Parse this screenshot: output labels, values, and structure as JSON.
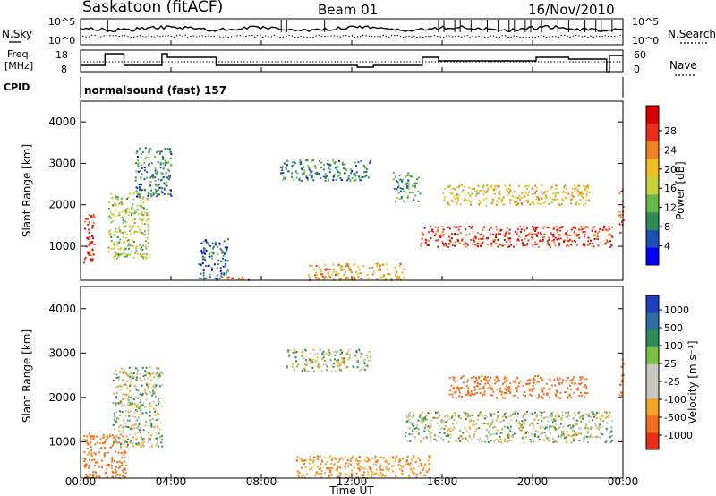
{
  "header": {
    "station": "Saskatoon (fitACF)",
    "beam": "Beam 01",
    "date": "16/Nov/2010",
    "program": "normalsound (fast) 157"
  },
  "side_labels": {
    "nsky": "N.Sky",
    "freq_line1": "Freq.",
    "freq_line2": "[MHz]",
    "cpid": "CPID",
    "nsearch": "N.Search",
    "nave": "Nave"
  },
  "axes": {
    "x_label": "Time UT",
    "x_ticks": [
      "00:00",
      "04:00",
      "08:00",
      "12:00",
      "16:00",
      "20:00",
      "00:00"
    ],
    "y_label": "Slant Range [km]",
    "y_ticks": [
      "1000",
      "2000",
      "3000",
      "4000"
    ],
    "noise_ticks_left": [
      "10^5",
      "10^0"
    ],
    "noise_ticks_right": [
      "10^5",
      "10^0"
    ],
    "freq_ticks": [
      "18",
      "8"
    ],
    "nave_ticks": [
      "60",
      "0"
    ]
  },
  "colorbars": {
    "power": {
      "label": "Power [dB]",
      "ticks": [
        "4",
        "8",
        "12",
        "16",
        "20",
        "24",
        "28"
      ],
      "colors": [
        "#0000ff",
        "#1f4fb0",
        "#2e8b57",
        "#66b845",
        "#c8d23a",
        "#f0c020",
        "#f08020",
        "#e83018",
        "#d80000"
      ]
    },
    "velocity": {
      "label": "Velocity [m s⁻¹]",
      "ticks": [
        "1000",
        "500",
        "100",
        "25",
        "-25",
        "-100",
        "-500",
        "-1000"
      ],
      "colors": [
        "#1e3fbf",
        "#2e6fa0",
        "#2e8b57",
        "#7ac143",
        "#c8c8c0",
        "#c8c8c0",
        "#f5a623",
        "#f07020",
        "#e83018"
      ]
    }
  },
  "chart_data": {
    "type": "heatmap",
    "title": "Saskatoon (fitACF)",
    "x_range_hours": [
      0,
      24
    ],
    "y_range_km": [
      180,
      4500
    ],
    "panels": [
      {
        "name": "Power",
        "unit": "dB",
        "regions": [
          {
            "t": [
              0.1,
              0.6
            ],
            "r": [
              600,
              1800
            ],
            "v": 26
          },
          {
            "t": [
              1.2,
              3.0
            ],
            "r": [
              700,
              2300
            ],
            "v": 14
          },
          {
            "t": [
              2.4,
              4.0
            ],
            "r": [
              2200,
              3400
            ],
            "v": 8
          },
          {
            "t": [
              5.2,
              6.5
            ],
            "r": [
              200,
              1200
            ],
            "v": 6
          },
          {
            "t": [
              6.2,
              7.5
            ],
            "r": [
              200,
              300
            ],
            "v": 24
          },
          {
            "t": [
              8.8,
              12.8
            ],
            "r": [
              2600,
              3100
            ],
            "v": 8
          },
          {
            "t": [
              10.0,
              14.3
            ],
            "r": [
              200,
              600
            ],
            "v": 20
          },
          {
            "t": [
              13.8,
              15.0
            ],
            "r": [
              2100,
              2800
            ],
            "v": 9
          },
          {
            "t": [
              15.0,
              23.5
            ],
            "r": [
              1000,
              1500
            ],
            "v": 25
          },
          {
            "t": [
              16.0,
              22.5
            ],
            "r": [
              2000,
              2500
            ],
            "v": 18
          },
          {
            "t": [
              23.8,
              24.0
            ],
            "r": [
              1200,
              2400
            ],
            "v": 24
          }
        ]
      },
      {
        "name": "Velocity",
        "unit": "m s-1",
        "regions": [
          {
            "t": [
              0.1,
              2.0
            ],
            "r": [
              200,
              1200
            ],
            "v": -150
          },
          {
            "t": [
              1.4,
              3.6
            ],
            "r": [
              900,
              2700
            ],
            "v": 0
          },
          {
            "t": [
              9.0,
              12.8
            ],
            "r": [
              2600,
              3100
            ],
            "v": 0
          },
          {
            "t": [
              14.3,
              23.5
            ],
            "r": [
              1000,
              1700
            ],
            "v": 0
          },
          {
            "t": [
              16.3,
              22.4
            ],
            "r": [
              2000,
              2500
            ],
            "v": -200
          },
          {
            "t": [
              9.5,
              15.5
            ],
            "r": [
              200,
              700
            ],
            "v": -80
          },
          {
            "t": [
              23.8,
              24.0
            ],
            "r": [
              2000,
              3000
            ],
            "v": -150
          }
        ]
      }
    ]
  }
}
